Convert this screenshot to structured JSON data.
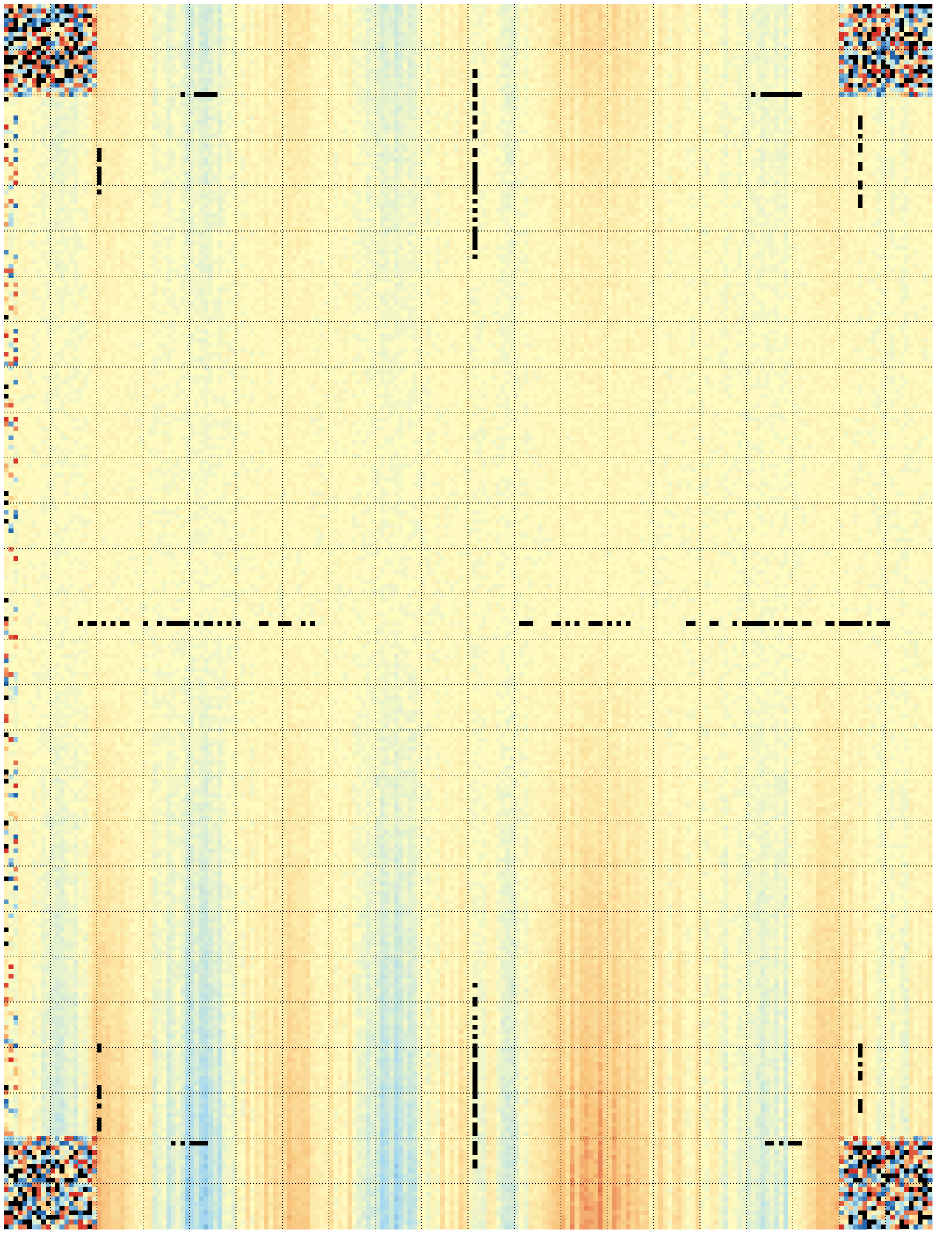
{
  "chart_data": {
    "type": "heatmap",
    "title": "",
    "xlabel": "",
    "ylabel": "",
    "colormap": [
      "#2166ac",
      "#a6d9f0",
      "#fffbc0",
      "#f8c27a",
      "#d73027"
    ],
    "missing_color": "#000000",
    "grid": "dotted",
    "grid_color": "#000000",
    "value_range": [
      -1,
      1
    ],
    "n_cols": 200,
    "n_rows": 264,
    "column_profile": [
      {
        "x": 0.0,
        "v": 0.1
      },
      {
        "x": 0.02,
        "v": 0.02
      },
      {
        "x": 0.05,
        "v": -0.25
      },
      {
        "x": 0.08,
        "v": -0.15
      },
      {
        "x": 0.1,
        "v": 0.45
      },
      {
        "x": 0.13,
        "v": 0.3
      },
      {
        "x": 0.16,
        "v": -0.05
      },
      {
        "x": 0.19,
        "v": -0.3
      },
      {
        "x": 0.22,
        "v": -0.45
      },
      {
        "x": 0.25,
        "v": 0.1
      },
      {
        "x": 0.28,
        "v": 0.2
      },
      {
        "x": 0.31,
        "v": 0.35
      },
      {
        "x": 0.34,
        "v": 0.15
      },
      {
        "x": 0.37,
        "v": 0.1
      },
      {
        "x": 0.4,
        "v": -0.3
      },
      {
        "x": 0.43,
        "v": -0.4
      },
      {
        "x": 0.46,
        "v": 0.05
      },
      {
        "x": 0.49,
        "v": 0.15
      },
      {
        "x": 0.52,
        "v": 0.0
      },
      {
        "x": 0.55,
        "v": -0.15
      },
      {
        "x": 0.58,
        "v": 0.1
      },
      {
        "x": 0.61,
        "v": 0.45
      },
      {
        "x": 0.64,
        "v": 0.55
      },
      {
        "x": 0.67,
        "v": 0.35
      },
      {
        "x": 0.7,
        "v": 0.2
      },
      {
        "x": 0.73,
        "v": 0.15
      },
      {
        "x": 0.76,
        "v": 0.05
      },
      {
        "x": 0.79,
        "v": -0.1
      },
      {
        "x": 0.82,
        "v": -0.25
      },
      {
        "x": 0.85,
        "v": -0.15
      },
      {
        "x": 0.88,
        "v": 0.5
      },
      {
        "x": 0.91,
        "v": 0.25
      },
      {
        "x": 0.94,
        "v": 0.05
      },
      {
        "x": 0.97,
        "v": 0.0
      },
      {
        "x": 1.0,
        "v": 0.1
      }
    ],
    "row_profile": [
      {
        "y": 0.0,
        "a": 0.55
      },
      {
        "y": 0.06,
        "a": 0.4
      },
      {
        "y": 0.15,
        "a": 0.25
      },
      {
        "y": 0.3,
        "a": 0.1
      },
      {
        "y": 0.45,
        "a": 0.05
      },
      {
        "y": 0.5,
        "a": 0.05
      },
      {
        "y": 0.58,
        "a": 0.2
      },
      {
        "y": 0.7,
        "a": 0.4
      },
      {
        "y": 0.8,
        "a": 0.6
      },
      {
        "y": 0.88,
        "a": 0.8
      },
      {
        "y": 0.95,
        "a": 1.0
      },
      {
        "y": 1.0,
        "a": 1.1
      }
    ]
  }
}
